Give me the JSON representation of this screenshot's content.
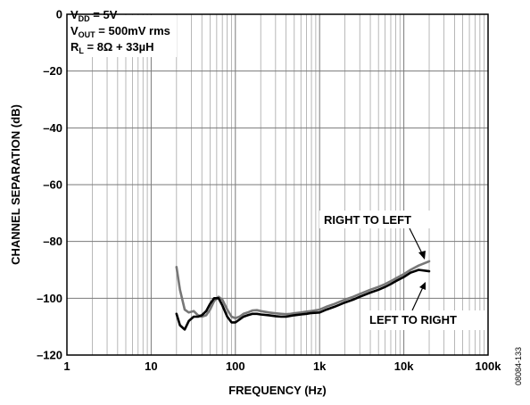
{
  "chart_data": {
    "type": "line",
    "title": "",
    "xlabel": "FREQUENCY (Hz)",
    "ylabel": "CHANNEL SEPARATION (dB)",
    "x_scale": "log",
    "xlim": [
      1,
      100000
    ],
    "ylim": [
      -120,
      0
    ],
    "x_ticks": [
      {
        "value": 1,
        "label": "1"
      },
      {
        "value": 10,
        "label": "10"
      },
      {
        "value": 100,
        "label": "100"
      },
      {
        "value": 1000,
        "label": "1k"
      },
      {
        "value": 10000,
        "label": "10k"
      },
      {
        "value": 100000,
        "label": "100k"
      }
    ],
    "y_ticks": [
      {
        "value": 0,
        "label": "0"
      },
      {
        "value": -20,
        "label": "–20"
      },
      {
        "value": -40,
        "label": "–40"
      },
      {
        "value": -60,
        "label": "–60"
      },
      {
        "value": -80,
        "label": "–80"
      },
      {
        "value": -100,
        "label": "–100"
      },
      {
        "value": -120,
        "label": "–120"
      }
    ],
    "grid": true,
    "conditions": [
      {
        "main": "V",
        "sub": "DD",
        "rest": " = 5V"
      },
      {
        "main": "V",
        "sub": "OUT",
        "rest": " = 500mV rms"
      },
      {
        "main": "R",
        "sub": "L",
        "rest": " = 8Ω + 33µH"
      }
    ],
    "series": [
      {
        "name": "RIGHT TO LEFT",
        "color": "#777777",
        "x": [
          20,
          22,
          25,
          28,
          32,
          36,
          40,
          45,
          50,
          56,
          63,
          70,
          80,
          90,
          100,
          112,
          125,
          140,
          160,
          180,
          200,
          250,
          300,
          350,
          400,
          450,
          500,
          600,
          700,
          800,
          1000,
          1200,
          1500,
          2000,
          2500,
          3000,
          4000,
          5000,
          6000,
          7000,
          8000,
          10000,
          12000,
          15000,
          20000
        ],
        "values": [
          -89,
          -97,
          -104,
          -105,
          -104.5,
          -106,
          -106.5,
          -106,
          -104,
          -101,
          -99.5,
          -100.5,
          -104,
          -106.5,
          -107,
          -106.5,
          -105.5,
          -105,
          -104.3,
          -104.2,
          -104.5,
          -105,
          -105.3,
          -105.5,
          -105.6,
          -105.5,
          -105.3,
          -105,
          -104.7,
          -104.5,
          -104,
          -103,
          -102,
          -100.5,
          -99.5,
          -98.5,
          -97,
          -96,
          -95,
          -94,
          -93,
          -91.5,
          -90,
          -88.5,
          -87
        ]
      },
      {
        "name": "LEFT TO RIGHT",
        "color": "#000000",
        "x": [
          20,
          22,
          25,
          28,
          32,
          36,
          40,
          45,
          50,
          56,
          63,
          70,
          80,
          90,
          100,
          112,
          125,
          140,
          160,
          180,
          200,
          250,
          300,
          350,
          400,
          450,
          500,
          600,
          700,
          800,
          1000,
          1200,
          1500,
          2000,
          2500,
          3000,
          4000,
          5000,
          6000,
          7000,
          8000,
          10000,
          12000,
          15000,
          20000
        ],
        "values": [
          -105.5,
          -109.5,
          -111,
          -108,
          -106.5,
          -106.5,
          -106,
          -104.5,
          -102,
          -100,
          -100,
          -102.5,
          -106.5,
          -108.5,
          -108.5,
          -107.5,
          -106.5,
          -106,
          -105.5,
          -105.5,
          -105.7,
          -106,
          -106.3,
          -106.5,
          -106.5,
          -106.2,
          -106,
          -105.7,
          -105.5,
          -105.2,
          -105,
          -104,
          -103,
          -101.5,
          -100.5,
          -99.5,
          -98,
          -97,
          -96,
          -95,
          -94,
          -92.5,
          -91,
          -90,
          -90.5
        ]
      }
    ],
    "annotations": [
      {
        "text": "RIGHT TO LEFT",
        "series": "RIGHT TO LEFT"
      },
      {
        "text": "LEFT TO RIGHT",
        "series": "LEFT TO RIGHT"
      }
    ],
    "figure_id": "08084-133"
  }
}
